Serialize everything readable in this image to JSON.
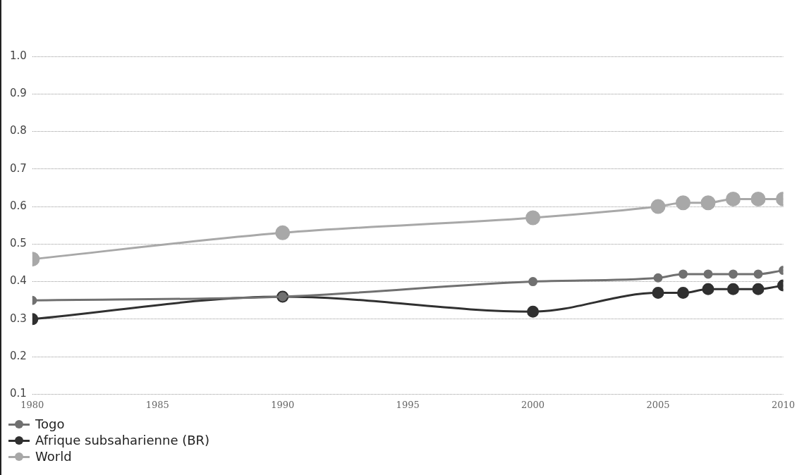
{
  "chart_data": {
    "type": "line",
    "x": [
      1980,
      1990,
      2000,
      2005,
      2006,
      2007,
      2008,
      2009,
      2010
    ],
    "series": [
      {
        "name": "Togo",
        "color": "#707070",
        "values": [
          0.35,
          0.36,
          0.4,
          0.41,
          0.42,
          0.42,
          0.42,
          0.42,
          0.43
        ]
      },
      {
        "name": "Afrique subsaharienne (BR)",
        "color": "#303030",
        "values": [
          0.3,
          0.36,
          0.32,
          0.37,
          0.37,
          0.38,
          0.38,
          0.38,
          0.39
        ]
      },
      {
        "name": "World",
        "color": "#a8a8a8",
        "values": [
          0.46,
          0.53,
          0.57,
          0.6,
          0.61,
          0.61,
          0.62,
          0.62,
          0.62
        ]
      }
    ],
    "xlim": [
      1980,
      2010
    ],
    "xticks": [
      1980,
      1985,
      1990,
      1995,
      2000,
      2005,
      2010
    ],
    "ylim": [
      0.1,
      1.0
    ],
    "yticks": [
      0.1,
      0.2,
      0.3,
      0.4,
      0.5,
      0.6,
      0.7,
      0.8,
      0.9,
      {
        "value": 1.0,
        "label": "1.0"
      }
    ],
    "grid": "y",
    "legend": "bottom left",
    "marker": "circle",
    "line_style": "solid"
  }
}
